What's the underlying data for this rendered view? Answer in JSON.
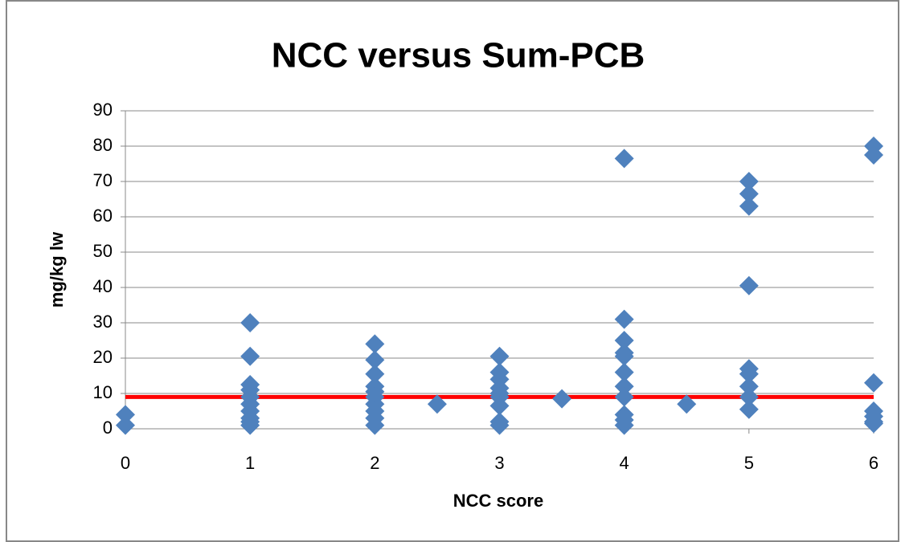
{
  "chart_data": {
    "type": "scatter",
    "title": "NCC versus Sum-PCB",
    "x_label": "NCC score",
    "y_label": "mg/kg lw",
    "series": [
      {
        "name": "Sum-PCB",
        "color": "#4f81bd",
        "x": [
          0,
          0,
          1,
          1,
          1,
          1,
          1,
          1,
          1,
          1,
          1,
          1,
          2,
          2,
          2,
          2,
          2,
          2,
          2,
          2,
          2,
          2,
          2.5,
          3,
          3,
          3,
          3,
          3,
          3,
          3,
          3,
          3,
          3.5,
          4,
          4,
          4,
          4,
          4,
          4,
          4,
          4,
          4,
          4,
          4,
          4.5,
          5,
          5,
          5,
          5,
          5,
          5,
          5,
          5,
          5,
          6,
          6,
          6,
          6,
          6,
          6,
          6
        ],
        "values": [
          4,
          1,
          30,
          20.5,
          12.5,
          11,
          9,
          7,
          5,
          3,
          2,
          1,
          24,
          19.5,
          15.5,
          12,
          10.5,
          9,
          7,
          5,
          3,
          1,
          7,
          20.5,
          16,
          14,
          11.5,
          10,
          9,
          6.5,
          2,
          1,
          8.5,
          76.5,
          31,
          25,
          21.5,
          20.5,
          16,
          12,
          9,
          4,
          2.5,
          1,
          7,
          70,
          66.5,
          63,
          40.5,
          17,
          15.5,
          12,
          9,
          5.5,
          80,
          77.5,
          13,
          5,
          3.5,
          2,
          1.5
        ]
      }
    ],
    "reference_line": {
      "value": 9,
      "color": "#ff0000"
    },
    "xlim": [
      0,
      6
    ],
    "xticks": [
      0,
      1,
      2,
      3,
      4,
      5,
      6
    ],
    "ylim": [
      0,
      90
    ],
    "yticks": [
      0,
      10,
      20,
      30,
      40,
      50,
      60,
      70,
      80,
      90
    ],
    "grid": true
  }
}
